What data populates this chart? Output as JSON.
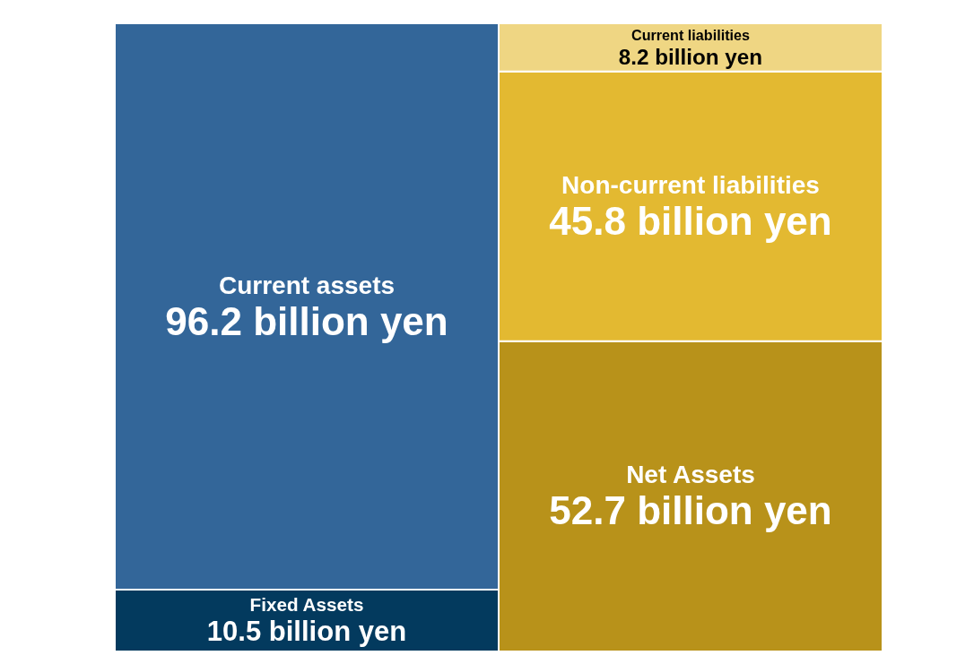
{
  "chart_data": {
    "type": "bar",
    "stacked": true,
    "categories": [
      null,
      null
    ],
    "tick_labels": false,
    "legend": false,
    "series": [
      {
        "name": "Fixed Assets",
        "color": "#033a5e",
        "values": [
          10.5,
          null
        ],
        "value_labels": [
          "10.5 billion yen",
          null
        ]
      },
      {
        "name": "Current assets",
        "color": "#336699",
        "values": [
          96.2,
          null
        ],
        "value_labels": [
          "96.2 billion yen",
          null
        ]
      },
      {
        "name": "Net Assets",
        "color": "#b8921a",
        "values": [
          null,
          52.7
        ],
        "value_labels": [
          null,
          "52.7 billion yen"
        ]
      },
      {
        "name": "Non-current liabilities",
        "color": "#e3b931",
        "values": [
          null,
          45.8
        ],
        "value_labels": [
          null,
          "45.8 billion yen"
        ]
      },
      {
        "name": "Current liabilities",
        "color": "#efd683",
        "values": [
          null,
          8.2
        ],
        "value_labels": [
          null,
          "8.2 billion yen"
        ]
      }
    ]
  }
}
